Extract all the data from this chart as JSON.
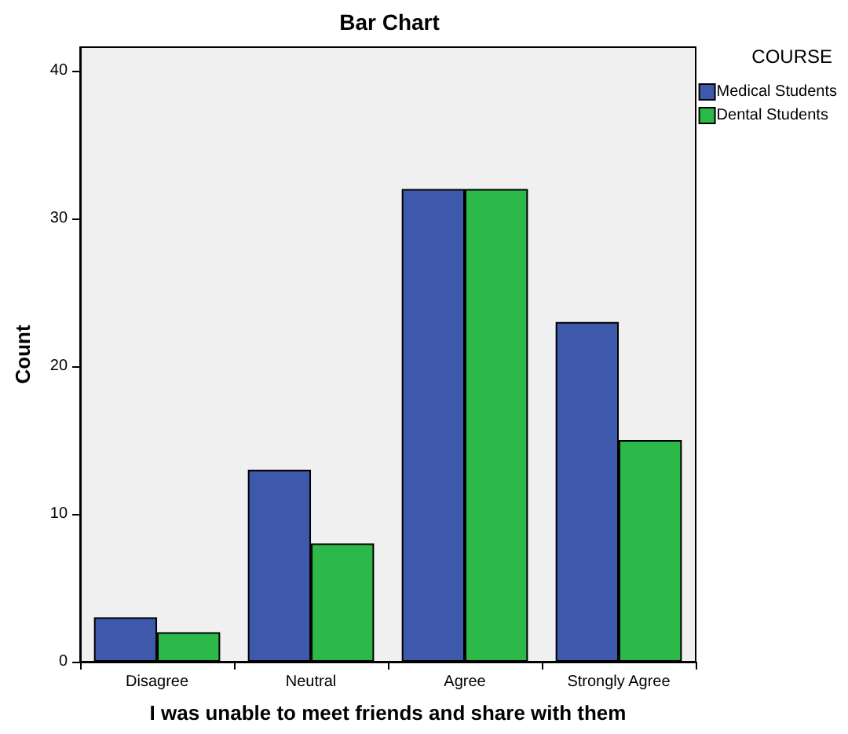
{
  "chart_data": {
    "type": "bar",
    "title": "Bar Chart",
    "xlabel": "I was unable to meet friends and share with them",
    "ylabel": "Count",
    "legend_title": "COURSE",
    "categories": [
      "Disagree",
      "Neutral",
      "Agree",
      "Strongly Agree"
    ],
    "series": [
      {
        "name": "Medical Students",
        "color": "#3e58ac",
        "values": [
          3,
          13,
          32,
          23
        ]
      },
      {
        "name": "Dental Students",
        "color": "#2db84a",
        "values": [
          2,
          8,
          32,
          15
        ]
      }
    ],
    "ylim": [
      0,
      41.6
    ],
    "yticks": [
      0,
      10,
      20,
      30,
      40
    ],
    "grid": false,
    "legend": "top right"
  }
}
